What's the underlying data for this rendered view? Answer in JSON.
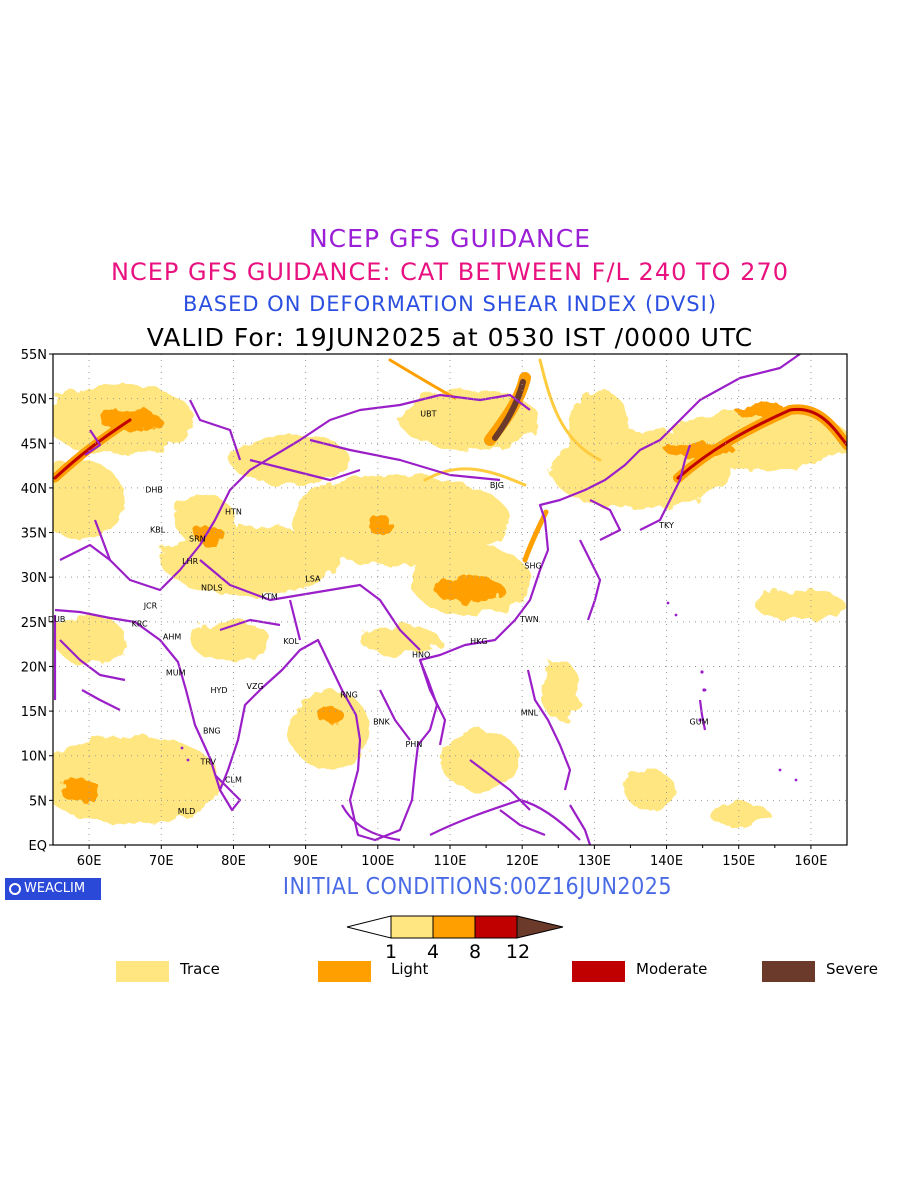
{
  "header": {
    "title1": "NCEP GFS GUIDANCE",
    "title2": "NCEP GFS GUIDANCE: CAT BETWEEN F/L 240 TO 270",
    "title3": "BASED ON DEFORMATION SHEAR INDEX (DVSI)",
    "title4": "VALID For: 19JUN2025 at 0530 IST /0000 UTC"
  },
  "map": {
    "lat_labels": [
      "55N",
      "50N",
      "45N",
      "40N",
      "35N",
      "30N",
      "25N",
      "20N",
      "15N",
      "10N",
      "5N",
      "EQ"
    ],
    "lon_labels": [
      "60E",
      "70E",
      "80E",
      "90E",
      "100E",
      "110E",
      "120E",
      "130E",
      "140E",
      "150E",
      "160E"
    ],
    "cities": [
      {
        "name": "UBT",
        "lon": 107,
        "lat": 48
      },
      {
        "name": "BJG",
        "lon": 116.5,
        "lat": 40
      },
      {
        "name": "DHB",
        "lon": 69,
        "lat": 39.5
      },
      {
        "name": "HTN",
        "lon": 80,
        "lat": 37
      },
      {
        "name": "KBL",
        "lon": 69.5,
        "lat": 35
      },
      {
        "name": "SRN",
        "lon": 75,
        "lat": 34
      },
      {
        "name": "LHR",
        "lon": 74,
        "lat": 31.5
      },
      {
        "name": "TKY",
        "lon": 140,
        "lat": 35.5
      },
      {
        "name": "LSA",
        "lon": 91,
        "lat": 29.5
      },
      {
        "name": "SHG",
        "lon": 121.5,
        "lat": 31
      },
      {
        "name": "JCR",
        "lon": 68.5,
        "lat": 26.5
      },
      {
        "name": "NDLS",
        "lon": 77,
        "lat": 28.5
      },
      {
        "name": "KTM",
        "lon": 85,
        "lat": 27.5
      },
      {
        "name": "DUB",
        "lon": 55.5,
        "lat": 25
      },
      {
        "name": "KRC",
        "lon": 67,
        "lat": 24.5
      },
      {
        "name": "TWN",
        "lon": 121,
        "lat": 25
      },
      {
        "name": "AHM",
        "lon": 71.5,
        "lat": 23
      },
      {
        "name": "KOL",
        "lon": 88,
        "lat": 22.5
      },
      {
        "name": "HKG",
        "lon": 114,
        "lat": 22.5
      },
      {
        "name": "HNO",
        "lon": 106,
        "lat": 21
      },
      {
        "name": "MUM",
        "lon": 72,
        "lat": 19
      },
      {
        "name": "HYD",
        "lon": 78,
        "lat": 17
      },
      {
        "name": "VZG",
        "lon": 83,
        "lat": 17.5
      },
      {
        "name": "RNG",
        "lon": 96,
        "lat": 16.5
      },
      {
        "name": "MNL",
        "lon": 121,
        "lat": 14.5
      },
      {
        "name": "GUM",
        "lon": 144.5,
        "lat": 13.5
      },
      {
        "name": "BNK",
        "lon": 100.5,
        "lat": 13.5
      },
      {
        "name": "PHN",
        "lon": 105,
        "lat": 11
      },
      {
        "name": "BNG",
        "lon": 77,
        "lat": 12.5
      },
      {
        "name": "TRV",
        "lon": 76.5,
        "lat": 9
      },
      {
        "name": "CLM",
        "lon": 80,
        "lat": 7
      },
      {
        "name": "MLD",
        "lon": 73.5,
        "lat": 3.5
      }
    ],
    "extent": {
      "lon_min": 55,
      "lon_max": 165,
      "lat_min": 0,
      "lat_max": 55
    },
    "colors": {
      "trace": "#ffe680",
      "light": "#ff9f00",
      "moderate": "#c00000",
      "severe": "#6b3a2a",
      "coast": "#9b1fc8"
    }
  },
  "brand": {
    "label": "WEACLIM",
    "icon": "copyright-ring-icon"
  },
  "initial_conditions": "INITIAL CONDITIONS:00Z16JUN2025",
  "colorbar": {
    "ticks": [
      "1",
      "4",
      "8",
      "12"
    ]
  },
  "legend": [
    {
      "label": "Trace",
      "color": "#ffe680"
    },
    {
      "label": "Light",
      "color": "#ff9f00"
    },
    {
      "label": "Moderate",
      "color": "#c00000"
    },
    {
      "label": "Severe",
      "color": "#6b3a2a"
    }
  ]
}
